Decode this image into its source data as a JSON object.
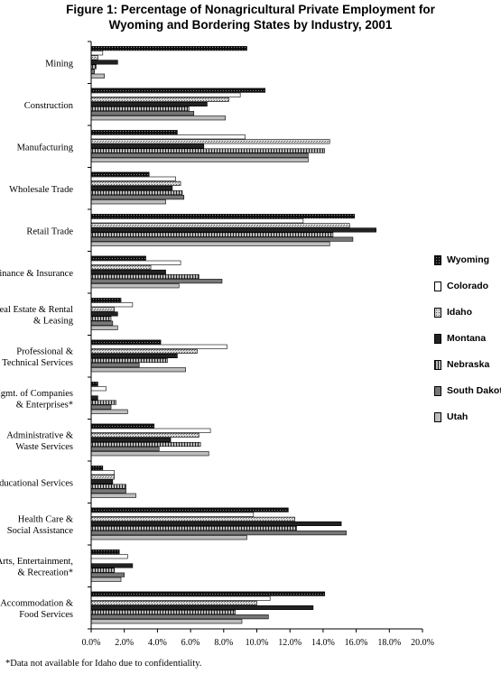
{
  "title_line1": "Figure 1: Percentage of Nonagricultural Private Employment for",
  "title_line2": "Wyoming and Bordering States by Industry, 2001",
  "footnote": "*Data not available for Idaho due to confidentiality.",
  "chart_data": {
    "type": "bar",
    "orientation": "horizontal",
    "xlim": [
      0,
      20
    ],
    "xticks": [
      "0.0%",
      "2.0%",
      "4.0%",
      "6.0%",
      "8.0%",
      "10.0%",
      "12.0%",
      "14.0%",
      "16.0%",
      "18.0%",
      "20.0%"
    ],
    "grid": false,
    "legend_position": "right",
    "categories": [
      "Mining",
      "Construction",
      "Manufacturing",
      "Wholesale Trade",
      "Retail Trade",
      "Finance & Insurance",
      "Real Estate & Rental\n& Leasing",
      "Professional &\nTechnical Services",
      "Mgmt. of Companies\n& Enterprises*",
      "Administrative &\nWaste Services",
      "Educational Services",
      "Health Care &\nSocial Assistance",
      "Arts, Entertainment,\n& Recreation*",
      "Accommodation &\nFood Services"
    ],
    "series": [
      {
        "name": "Wyoming",
        "pattern": "dots-dark",
        "values": [
          9.4,
          10.5,
          5.2,
          3.5,
          15.9,
          3.3,
          1.8,
          4.2,
          0.4,
          3.8,
          0.7,
          11.9,
          1.7,
          14.1
        ]
      },
      {
        "name": "Colorado",
        "pattern": "white",
        "values": [
          0.7,
          9.0,
          9.3,
          5.1,
          12.8,
          5.4,
          2.5,
          8.2,
          0.9,
          7.2,
          1.4,
          9.8,
          2.2,
          10.8
        ]
      },
      {
        "name": "Idaho",
        "pattern": "dots-light",
        "values": [
          0.4,
          8.3,
          14.4,
          5.4,
          15.6,
          3.6,
          1.4,
          6.4,
          0.0,
          6.5,
          1.4,
          12.3,
          0.0,
          10.0
        ]
      },
      {
        "name": "Montana",
        "pattern": "black",
        "values": [
          1.6,
          7.0,
          6.8,
          4.9,
          17.2,
          4.5,
          1.6,
          5.2,
          0.4,
          4.8,
          1.3,
          15.1,
          2.5,
          13.4
        ]
      },
      {
        "name": "Nebraska",
        "pattern": "vstripe",
        "values": [
          0.3,
          5.9,
          14.1,
          5.5,
          14.6,
          6.5,
          1.2,
          4.6,
          1.5,
          6.6,
          2.1,
          12.4,
          1.4,
          8.7
        ]
      },
      {
        "name": "South Dakota",
        "pattern": "gray-dark",
        "values": [
          0.2,
          6.2,
          13.1,
          5.6,
          15.8,
          7.9,
          1.3,
          2.9,
          1.2,
          4.1,
          2.1,
          15.4,
          2.0,
          10.7
        ]
      },
      {
        "name": "Utah",
        "pattern": "gray-light",
        "values": [
          0.8,
          8.1,
          13.1,
          4.5,
          14.4,
          5.3,
          1.6,
          5.7,
          2.2,
          7.1,
          2.7,
          9.4,
          1.8,
          9.1
        ]
      }
    ]
  }
}
